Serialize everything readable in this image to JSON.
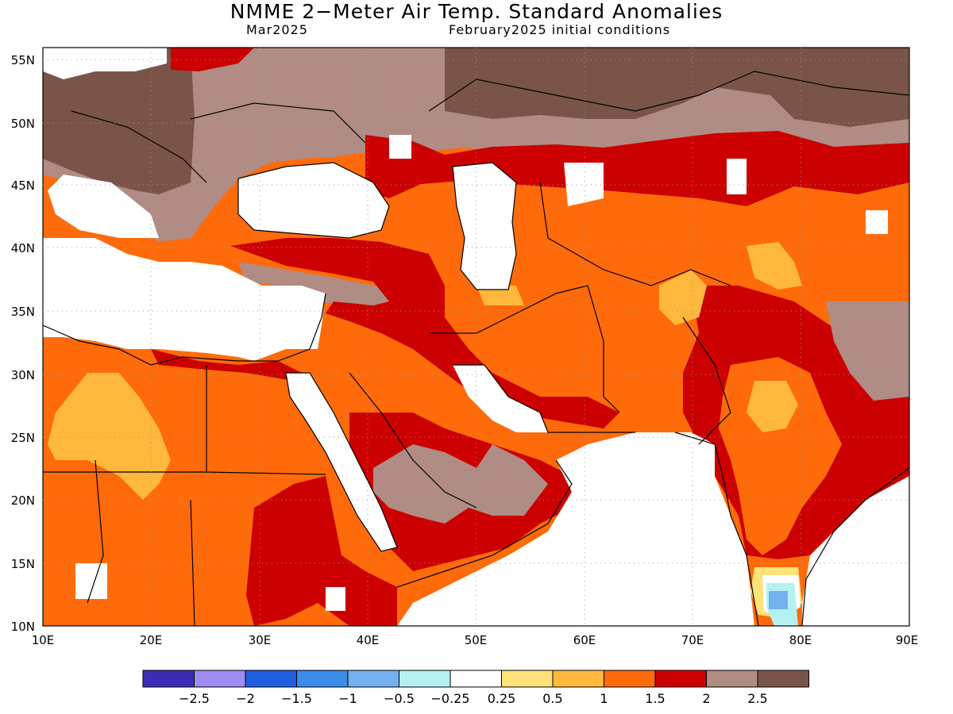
{
  "title": "NMME 2−Meter Air Temp. Standard Anomalies",
  "subtitle_left": "Mar2025",
  "subtitle_right": "February2025 initial conditions",
  "x_ticks": [
    "10E",
    "20E",
    "30E",
    "40E",
    "50E",
    "60E",
    "70E",
    "80E",
    "90E"
  ],
  "y_ticks": [
    "55N",
    "50N",
    "45N",
    "40N",
    "35N",
    "30N",
    "25N",
    "20N",
    "15N",
    "10N"
  ],
  "colorbar": {
    "colors": [
      "#3a2fb4",
      "#9e8cf2",
      "#1f5fe0",
      "#3a8ce8",
      "#74b1ef",
      "#b6f1f1",
      "#ffffff",
      "#ffe27a",
      "#ffb83c",
      "#ff6b0a",
      "#cc0000",
      "#b08c84",
      "#7a5448"
    ],
    "labels": [
      "−2.5",
      "−2",
      "−1.5",
      "−1",
      "−0.5",
      "−0.25",
      "0.25",
      "0.5",
      "1",
      "1.5",
      "2",
      "2.5"
    ]
  },
  "regions": {
    "ocean_land_white": "#ffffff",
    "anomaly_2_2.5": "#b08c84",
    "anomaly_above_2.5": "#7a5448",
    "anomaly_1.5_2": "#cc0000",
    "anomaly_1_1.5": "#ff6b0a",
    "anomaly_0.5_1": "#ffb83c",
    "anomaly_0.25_0.5": "#ffe27a"
  }
}
